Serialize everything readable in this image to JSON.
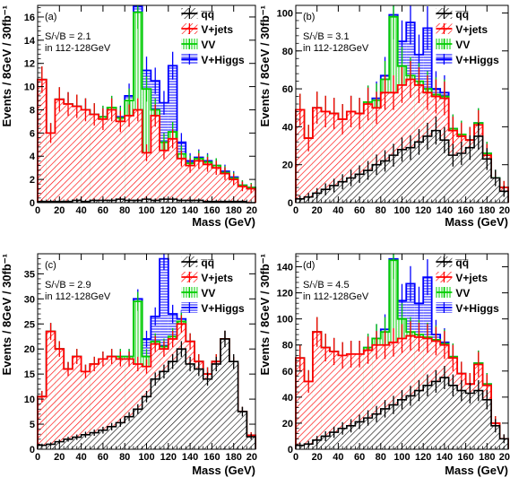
{
  "colors": {
    "qq": "#000000",
    "vjets": "#ff0000",
    "vv": "#00cc00",
    "vhiggs": "#0000ff"
  },
  "legend": [
    "q̅q̅",
    "V+jets",
    "VV",
    "V+Higgs"
  ],
  "chart_data": [
    {
      "type": "bar",
      "panel_label": "(a)",
      "annotation": [
        "S/√B = 2.1",
        "in 112-128GeV"
      ],
      "xlabel": "Mass (GeV)",
      "ylabel": "Events / 8GeV / 30fb⁻¹",
      "xlim": [
        0,
        200
      ],
      "ylim": [
        0,
        17
      ],
      "xticks": [
        "0",
        "20",
        "40",
        "60",
        "80",
        "100",
        "120",
        "140",
        "160",
        "180",
        "20"
      ],
      "yticks": [
        0,
        2,
        4,
        6,
        8,
        10,
        12,
        14,
        16
      ],
      "bin_edges": [
        0,
        8,
        16,
        24,
        32,
        40,
        48,
        56,
        64,
        72,
        80,
        88,
        96,
        104,
        112,
        120,
        128,
        136,
        144,
        152,
        160,
        168,
        176,
        184,
        192,
        200
      ],
      "series": [
        {
          "name": "q̅q̅",
          "values": [
            0.1,
            0.1,
            0.1,
            0.1,
            0.2,
            0.1,
            0.2,
            0.2,
            0.2,
            0.3,
            0.2,
            0.2,
            0.3,
            0.2,
            0.3,
            0.3,
            0.2,
            0.2,
            0.2,
            0.1,
            0.1,
            0.1,
            0.1,
            0.1,
            0.0
          ]
        },
        {
          "name": "V+jets",
          "values": [
            10.6,
            6.0,
            8.9,
            8.5,
            8.3,
            8.0,
            7.6,
            7.2,
            8.0,
            7.0,
            7.5,
            8.0,
            4.3,
            7.5,
            4.5,
            5.5,
            3.8,
            3.2,
            3.6,
            3.3,
            3.0,
            2.5,
            2.0,
            1.4,
            1.2
          ]
        },
        {
          "name": "VV",
          "values": [
            10.6,
            6.0,
            8.9,
            8.5,
            8.3,
            8.0,
            7.6,
            7.4,
            8.2,
            7.3,
            8.8,
            16.4,
            9.8,
            8.0,
            5.2,
            6.1,
            4.2,
            3.4,
            3.8,
            3.5,
            3.2,
            2.6,
            2.1,
            1.5,
            1.3
          ]
        },
        {
          "name": "V+Higgs",
          "values": [
            10.6,
            6.0,
            8.9,
            8.5,
            8.3,
            8.0,
            7.6,
            7.4,
            8.2,
            7.4,
            9.2,
            16.9,
            11.4,
            10.5,
            8.6,
            11.8,
            5.2,
            3.6,
            3.9,
            3.6,
            3.2,
            2.7,
            2.2,
            1.5,
            1.3
          ]
        }
      ]
    },
    {
      "type": "bar",
      "panel_label": "(b)",
      "annotation": [
        "S/√B = 3.1",
        "in 112-128GeV"
      ],
      "xlabel": "Mass (GeV)",
      "ylabel": "Events / 8GeV / 30fb⁻¹",
      "xlim": [
        0,
        200
      ],
      "ylim": [
        0,
        104
      ],
      "xticks": [
        "0",
        "20",
        "40",
        "60",
        "80",
        "100",
        "120",
        "140",
        "160",
        "180",
        "20"
      ],
      "yticks": [
        0,
        20,
        40,
        60,
        80,
        100
      ],
      "bin_edges": [
        0,
        8,
        16,
        24,
        32,
        40,
        48,
        56,
        64,
        72,
        80,
        88,
        96,
        104,
        112,
        120,
        128,
        136,
        144,
        152,
        160,
        168,
        176,
        184,
        192,
        200
      ],
      "series": [
        {
          "name": "q̅q̅",
          "values": [
            2,
            3,
            5,
            7,
            9,
            11,
            13,
            15,
            17,
            20,
            22,
            25,
            28,
            29,
            32,
            35,
            38,
            33,
            25,
            26,
            29,
            35,
            23,
            13,
            6
          ]
        },
        {
          "name": "V+jets",
          "values": [
            49,
            34,
            50,
            48,
            47,
            44,
            48,
            47,
            52,
            50,
            58,
            58,
            62,
            65,
            62,
            58,
            56,
            55,
            38,
            35,
            33,
            41,
            25,
            12,
            8
          ]
        },
        {
          "name": "VV",
          "values": [
            49,
            34,
            50,
            48,
            47,
            44,
            48,
            47,
            53,
            54,
            65,
            98,
            72,
            67,
            64,
            60,
            57,
            56,
            39,
            36,
            33,
            42,
            26,
            13,
            8
          ]
        },
        {
          "name": "V+Higgs",
          "values": [
            49,
            34,
            50,
            48,
            47,
            44,
            48,
            47,
            53,
            55,
            67,
            99,
            85,
            95,
            78,
            92,
            60,
            58,
            39,
            36,
            33,
            42,
            26,
            13,
            8
          ]
        }
      ]
    },
    {
      "type": "bar",
      "panel_label": "(c)",
      "annotation": [
        "S/√B = 2.9",
        "in 112-128GeV"
      ],
      "xlabel": "Mass (GeV)",
      "ylabel": "Events / 8GeV / 30fb⁻¹",
      "xlim": [
        0,
        200
      ],
      "ylim": [
        0,
        39
      ],
      "xticks": [
        "0",
        "20",
        "40",
        "60",
        "80",
        "100",
        "120",
        "140",
        "160",
        "180",
        "20"
      ],
      "yticks": [
        0,
        5,
        10,
        15,
        20,
        25,
        30,
        35
      ],
      "bin_edges": [
        0,
        8,
        16,
        24,
        32,
        40,
        48,
        56,
        64,
        72,
        80,
        88,
        96,
        104,
        112,
        120,
        128,
        136,
        144,
        152,
        160,
        168,
        176,
        184,
        192,
        200
      ],
      "series": [
        {
          "name": "q̅q̅",
          "values": [
            0.8,
            1.0,
            1.5,
            2.0,
            2.4,
            2.9,
            3.3,
            3.8,
            4.5,
            5.3,
            6.5,
            8.0,
            10.5,
            14.0,
            15.5,
            17.5,
            20.0,
            17.0,
            16.0,
            14.0,
            17.0,
            22.0,
            17.5,
            7.5,
            2.5
          ]
        },
        {
          "name": "V+jets",
          "values": [
            10.5,
            23.5,
            20.0,
            16.0,
            18.5,
            15.5,
            17.0,
            18.0,
            18.5,
            18.0,
            18.0,
            17.0,
            16.5,
            21.0,
            20.0,
            22.0,
            25.0,
            21.5,
            17.5,
            15.0,
            17.5,
            22.0,
            17.0,
            7.5,
            2.8
          ]
        },
        {
          "name": "VV",
          "values": [
            10.5,
            23.5,
            20.0,
            16.0,
            18.5,
            15.5,
            17.0,
            18.0,
            18.5,
            18.5,
            18.5,
            29.5,
            18.5,
            21.5,
            20.5,
            22.5,
            25.5,
            21.5,
            17.5,
            15.0,
            17.5,
            22.0,
            17.0,
            7.5,
            2.8
          ]
        },
        {
          "name": "V+Higgs",
          "values": [
            10.5,
            23.5,
            20.0,
            16.0,
            18.5,
            15.5,
            17.0,
            18.0,
            18.5,
            18.5,
            18.5,
            30.0,
            22.0,
            26.5,
            38.0,
            27.0,
            26.0,
            21.5,
            17.5,
            15.0,
            17.5,
            22.0,
            17.0,
            7.5,
            2.8
          ]
        }
      ]
    },
    {
      "type": "bar",
      "panel_label": "(d)",
      "annotation": [
        "S/√B = 4.5",
        "in 112-128GeV"
      ],
      "xlabel": "Mass (GeV)",
      "ylabel": "Events / 8GeV / 30fb⁻¹",
      "xlim": [
        0,
        200
      ],
      "ylim": [
        0,
        150
      ],
      "xticks": [
        "0",
        "20",
        "40",
        "60",
        "80",
        "100",
        "120",
        "140",
        "160",
        "180",
        "20"
      ],
      "yticks": [
        0,
        20,
        40,
        60,
        80,
        100,
        120,
        140
      ],
      "bin_edges": [
        0,
        8,
        16,
        24,
        32,
        40,
        48,
        56,
        64,
        72,
        80,
        88,
        96,
        104,
        112,
        120,
        128,
        136,
        144,
        152,
        160,
        168,
        176,
        184,
        192,
        200
      ],
      "series": [
        {
          "name": "q̅q̅",
          "values": [
            3,
            4,
            7,
            10,
            13,
            16,
            18,
            21,
            24,
            27,
            31,
            34,
            38,
            41,
            45,
            49,
            52,
            55,
            49,
            45,
            43,
            45,
            38,
            18,
            8
          ]
        },
        {
          "name": "V+jets",
          "values": [
            70,
            52,
            90,
            78,
            75,
            72,
            73,
            73,
            76,
            80,
            80,
            82,
            85,
            87,
            86,
            85,
            83,
            80,
            70,
            58,
            50,
            65,
            49,
            20,
            8
          ]
        },
        {
          "name": "VV",
          "values": [
            70,
            52,
            90,
            78,
            75,
            72,
            73,
            73,
            78,
            85,
            90,
            145,
            100,
            90,
            88,
            86,
            84,
            81,
            71,
            58,
            50,
            66,
            50,
            20,
            8
          ]
        },
        {
          "name": "V+Higgs",
          "values": [
            70,
            52,
            90,
            78,
            75,
            72,
            73,
            73,
            78,
            85,
            92,
            146,
            114,
            127,
            112,
            132,
            88,
            82,
            71,
            58,
            50,
            66,
            50,
            20,
            8
          ]
        }
      ]
    }
  ]
}
